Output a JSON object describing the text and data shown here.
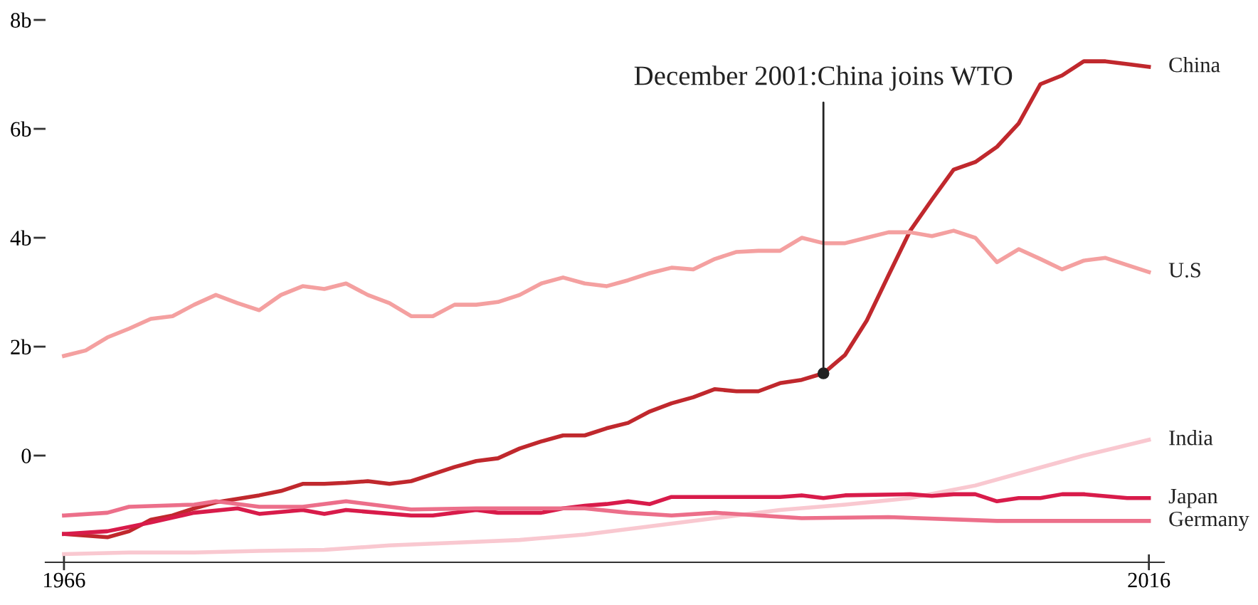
{
  "chart_data": {
    "type": "line",
    "xlim": [
      1965.15,
      2016.7
    ],
    "xticks": [
      1966,
      2016
    ],
    "ylim": [
      -1.96,
      8
    ],
    "yticks": [
      {
        "value": 0,
        "label": "0"
      },
      {
        "value": 2,
        "label": "2b"
      },
      {
        "value": 4,
        "label": "4b"
      },
      {
        "value": 6,
        "label": "6b"
      },
      {
        "value": 8,
        "label": "8b"
      }
    ],
    "grid": false,
    "legend": false,
    "marker": "none",
    "line_style": "solid",
    "annotations": [
      {
        "text": "December 2001:China joins WTO",
        "x": 2001,
        "y": 1.51
      }
    ],
    "series": [
      {
        "name": "China",
        "color": "#c0282d",
        "x": [
          1966,
          1968,
          1969,
          1970,
          1971,
          1972,
          1973,
          1975,
          1976,
          1977,
          1978,
          1979,
          1980,
          1981,
          1982,
          1983,
          1984,
          1985,
          1986,
          1987,
          1988,
          1989,
          1990,
          1991,
          1992,
          1993,
          1994,
          1995,
          1996,
          1997,
          1998,
          1999,
          2000,
          2001,
          2002,
          2003,
          2004,
          2005,
          2006,
          2007,
          2008,
          2009,
          2010,
          2011,
          2012,
          2013,
          2014,
          2015,
          2016
        ],
        "values": [
          -1.44,
          -1.5,
          -1.39,
          -1.18,
          -1.1,
          -0.97,
          -0.86,
          -0.73,
          -0.65,
          -0.52,
          -0.52,
          -0.5,
          -0.47,
          -0.52,
          -0.47,
          -0.34,
          -0.21,
          -0.1,
          -0.05,
          0.13,
          0.26,
          0.37,
          0.37,
          0.5,
          0.6,
          0.81,
          0.96,
          1.07,
          1.22,
          1.18,
          1.18,
          1.33,
          1.39,
          1.51,
          1.85,
          2.48,
          3.31,
          4.13,
          4.7,
          5.25,
          5.39,
          5.67,
          6.1,
          6.82,
          6.98,
          7.24,
          7.24,
          7.19,
          7.14
        ]
      },
      {
        "name": "U.S",
        "color": "#f4a0a0",
        "x": [
          1966,
          1967,
          1968,
          1969,
          1970,
          1971,
          1972,
          1973,
          1974,
          1975,
          1976,
          1977,
          1978,
          1979,
          1980,
          1981,
          1982,
          1983,
          1984,
          1985,
          1986,
          1987,
          1988,
          1989,
          1990,
          1991,
          1992,
          1993,
          1994,
          1995,
          1996,
          1997,
          1998,
          1999,
          2000,
          2001,
          2002,
          2003,
          2004,
          2005,
          2006,
          2007,
          2008,
          2009,
          2010,
          2011,
          2012,
          2013,
          2014,
          2015,
          2016
        ],
        "values": [
          1.83,
          1.93,
          2.17,
          2.33,
          2.51,
          2.56,
          2.77,
          2.95,
          2.8,
          2.67,
          2.95,
          3.11,
          3.06,
          3.16,
          2.95,
          2.8,
          2.56,
          2.56,
          2.77,
          2.77,
          2.82,
          2.95,
          3.16,
          3.27,
          3.16,
          3.11,
          3.22,
          3.35,
          3.45,
          3.42,
          3.61,
          3.74,
          3.76,
          3.76,
          4.0,
          3.9,
          3.9,
          4.0,
          4.1,
          4.1,
          4.03,
          4.13,
          4.0,
          3.55,
          3.79,
          3.61,
          3.42,
          3.58,
          3.63,
          3.5,
          3.37
        ]
      },
      {
        "name": "India",
        "color": "#f9c8d0",
        "x": [
          1966,
          1969,
          1972,
          1975,
          1978,
          1981,
          1984,
          1987,
          1990,
          1993,
          1996,
          1999,
          2002,
          2005,
          2008,
          2010,
          2013,
          2016
        ],
        "values": [
          -1.81,
          -1.78,
          -1.78,
          -1.75,
          -1.73,
          -1.65,
          -1.6,
          -1.55,
          -1.45,
          -1.3,
          -1.15,
          -1.0,
          -0.9,
          -0.78,
          -0.55,
          -0.33,
          0.0,
          0.29
        ]
      },
      {
        "name": "Japan",
        "color": "#d81b4a",
        "x": [
          1966,
          1968,
          1970,
          1972,
          1974,
          1975,
          1977,
          1978,
          1979,
          1982,
          1983,
          1985,
          1986,
          1988,
          1989,
          1990,
          1991,
          1992,
          1993,
          1994,
          1999,
          2000,
          2001,
          2002,
          2005,
          2006,
          2007,
          2008,
          2009,
          2010,
          2011,
          2012,
          2013,
          2015,
          2016
        ],
        "values": [
          -1.44,
          -1.39,
          -1.23,
          -1.05,
          -0.97,
          -1.07,
          -1.0,
          -1.07,
          -1.0,
          -1.1,
          -1.1,
          -1.0,
          -1.05,
          -1.05,
          -0.97,
          -0.92,
          -0.89,
          -0.84,
          -0.89,
          -0.76,
          -0.76,
          -0.73,
          -0.78,
          -0.73,
          -0.71,
          -0.74,
          -0.71,
          -0.71,
          -0.84,
          -0.78,
          -0.78,
          -0.71,
          -0.71,
          -0.78,
          -0.78
        ]
      },
      {
        "name": "Germany",
        "color": "#ec6f8a",
        "x": [
          1966,
          1968,
          1969,
          1972,
          1973,
          1975,
          1977,
          1979,
          1982,
          1985,
          1990,
          1992,
          1994,
          1996,
          2000,
          2004,
          2009,
          2016
        ],
        "values": [
          -1.1,
          -1.05,
          -0.94,
          -0.9,
          -0.84,
          -0.94,
          -0.94,
          -0.84,
          -0.99,
          -0.97,
          -0.97,
          -1.05,
          -1.1,
          -1.05,
          -1.15,
          -1.13,
          -1.2,
          -1.2
        ]
      }
    ]
  }
}
